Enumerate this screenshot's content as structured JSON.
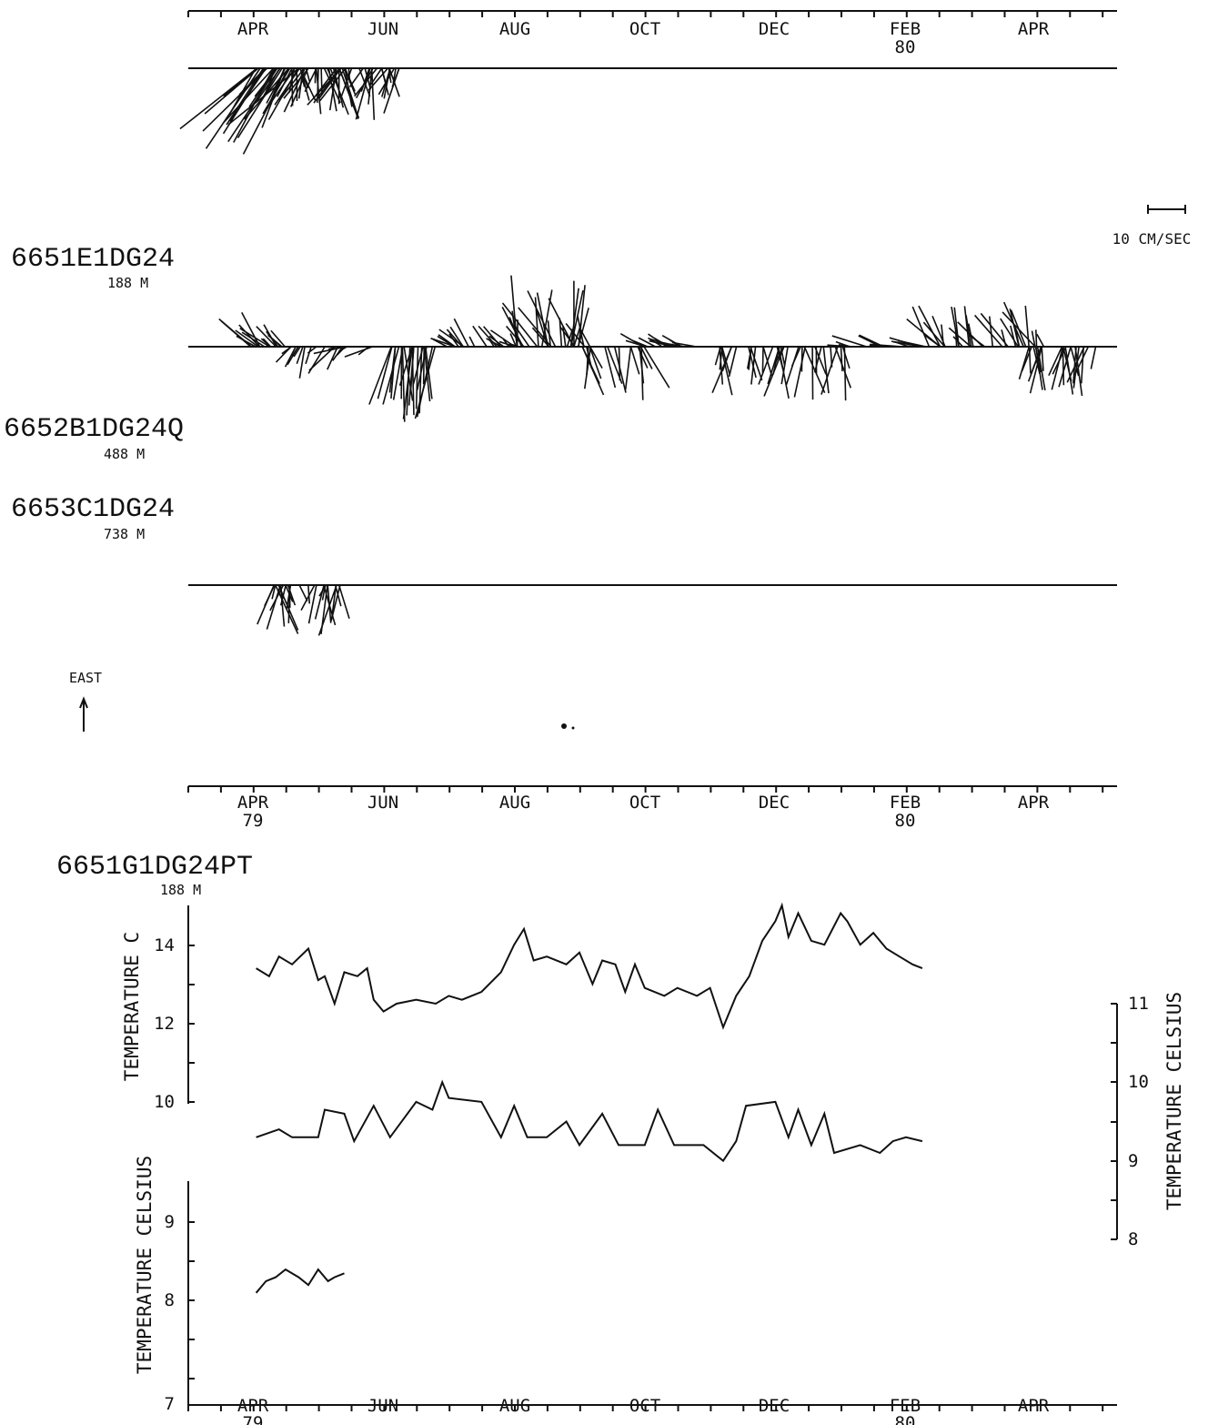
{
  "months": [
    "APR",
    "JUN",
    "AUG",
    "OCT",
    "DEC",
    "FEB",
    "APR"
  ],
  "year_labels": {
    "start": "79",
    "mid": "80"
  },
  "scale_bar": {
    "label": "10 CM/SEC"
  },
  "north_arrow": {
    "label": "EAST"
  },
  "stick_panel": {
    "records": [
      {
        "name": "6651E1DG24",
        "depth": "188 M"
      },
      {
        "name": "6652B1DG24Q",
        "depth": "488 M"
      },
      {
        "name": "6653C1DG24",
        "depth": "738 M"
      }
    ]
  },
  "temp_panel": {
    "record": "6651G1DG24PT",
    "depth": "188 M",
    "axis_upper_left_label": "TEMPERATURE C",
    "axis_lower_left_label": "TEMPERATURE CELSIUS",
    "axis_right_label": "TEMPERATURE CELSIUS",
    "upper_left_ticks": [
      "14",
      "12",
      "10"
    ],
    "right_ticks": [
      "11",
      "10",
      "9",
      "8"
    ],
    "lower_left_ticks": [
      "9",
      "8",
      "7"
    ]
  },
  "chart_data": [
    {
      "type": "line",
      "title": "",
      "xlabel": "",
      "ylabel": "TEMPERATURE C",
      "ylim": [
        10,
        15
      ],
      "x_range": [
        "1979-04",
        "1980-05"
      ],
      "series": [
        {
          "points": [
            [
              0.05,
              13.4
            ],
            [
              0.25,
              13.2
            ],
            [
              0.4,
              13.7
            ],
            [
              0.6,
              13.5
            ],
            [
              0.85,
              13.9
            ],
            [
              1.0,
              13.1
            ],
            [
              1.1,
              13.2
            ],
            [
              1.25,
              12.5
            ],
            [
              1.4,
              13.3
            ],
            [
              1.6,
              13.2
            ],
            [
              1.75,
              13.4
            ],
            [
              1.85,
              12.6
            ],
            [
              2.0,
              12.3
            ],
            [
              2.2,
              12.5
            ],
            [
              2.5,
              12.6
            ],
            [
              2.8,
              12.5
            ],
            [
              3.0,
              12.7
            ],
            [
              3.2,
              12.6
            ],
            [
              3.5,
              12.8
            ],
            [
              3.8,
              13.3
            ],
            [
              4.0,
              14.0
            ],
            [
              4.15,
              14.4
            ],
            [
              4.3,
              13.6
            ],
            [
              4.5,
              13.7
            ],
            [
              4.8,
              13.5
            ],
            [
              5.0,
              13.8
            ],
            [
              5.2,
              13.0
            ],
            [
              5.35,
              13.6
            ],
            [
              5.55,
              13.5
            ],
            [
              5.7,
              12.8
            ],
            [
              5.85,
              13.5
            ],
            [
              6.0,
              12.9
            ],
            [
              6.3,
              12.7
            ],
            [
              6.5,
              12.9
            ],
            [
              6.8,
              12.7
            ],
            [
              7.0,
              12.9
            ],
            [
              7.2,
              11.9
            ],
            [
              7.4,
              12.7
            ],
            [
              7.6,
              13.2
            ],
            [
              7.8,
              14.1
            ],
            [
              8.0,
              14.6
            ],
            [
              8.1,
              15.0
            ],
            [
              8.2,
              14.2
            ],
            [
              8.35,
              14.8
            ],
            [
              8.55,
              14.1
            ],
            [
              8.75,
              14.0
            ],
            [
              9.0,
              14.8
            ],
            [
              9.1,
              14.6
            ],
            [
              9.3,
              14.0
            ],
            [
              9.5,
              14.3
            ],
            [
              9.7,
              13.9
            ],
            [
              9.9,
              13.7
            ],
            [
              10.1,
              13.5
            ],
            [
              10.25,
              13.4
            ]
          ]
        }
      ]
    },
    {
      "type": "line",
      "title": "",
      "xlabel": "",
      "ylabel": "TEMPERATURE CELSIUS",
      "ylim": [
        8,
        11
      ],
      "x_range": [
        "1979-04",
        "1980-05"
      ],
      "series": [
        {
          "points": [
            [
              0.05,
              9.3
            ],
            [
              0.4,
              9.4
            ],
            [
              0.6,
              9.3
            ],
            [
              1.0,
              9.3
            ],
            [
              1.1,
              9.65
            ],
            [
              1.4,
              9.6
            ],
            [
              1.55,
              9.25
            ],
            [
              1.85,
              9.7
            ],
            [
              2.1,
              9.3
            ],
            [
              2.5,
              9.75
            ],
            [
              2.75,
              9.65
            ],
            [
              2.9,
              10.0
            ],
            [
              3.0,
              9.8
            ],
            [
              3.5,
              9.75
            ],
            [
              3.8,
              9.3
            ],
            [
              4.0,
              9.7
            ],
            [
              4.2,
              9.3
            ],
            [
              4.5,
              9.3
            ],
            [
              4.8,
              9.5
            ],
            [
              5.0,
              9.2
            ],
            [
              5.35,
              9.6
            ],
            [
              5.6,
              9.2
            ],
            [
              6.0,
              9.2
            ],
            [
              6.2,
              9.65
            ],
            [
              6.45,
              9.2
            ],
            [
              6.9,
              9.2
            ],
            [
              7.2,
              9.0
            ],
            [
              7.4,
              9.25
            ],
            [
              7.55,
              9.7
            ],
            [
              8.0,
              9.75
            ],
            [
              8.2,
              9.3
            ],
            [
              8.35,
              9.65
            ],
            [
              8.55,
              9.2
            ],
            [
              8.75,
              9.6
            ],
            [
              8.9,
              9.1
            ],
            [
              9.3,
              9.2
            ],
            [
              9.6,
              9.1
            ],
            [
              9.8,
              9.25
            ],
            [
              10.0,
              9.3
            ],
            [
              10.25,
              9.25
            ]
          ]
        }
      ]
    },
    {
      "type": "line",
      "title": "",
      "xlabel": "",
      "ylabel": "TEMPERATURE CELSIUS",
      "ylim": [
        7,
        10
      ],
      "x_range": [
        "1979-04",
        "1980-05"
      ],
      "series": [
        {
          "points": [
            [
              0.05,
              8.1
            ],
            [
              0.2,
              8.25
            ],
            [
              0.35,
              8.3
            ],
            [
              0.5,
              8.4
            ],
            [
              0.7,
              8.3
            ],
            [
              0.85,
              8.2
            ],
            [
              1.0,
              8.4
            ],
            [
              1.15,
              8.25
            ],
            [
              1.25,
              8.3
            ],
            [
              1.4,
              8.35
            ]
          ]
        }
      ]
    }
  ]
}
